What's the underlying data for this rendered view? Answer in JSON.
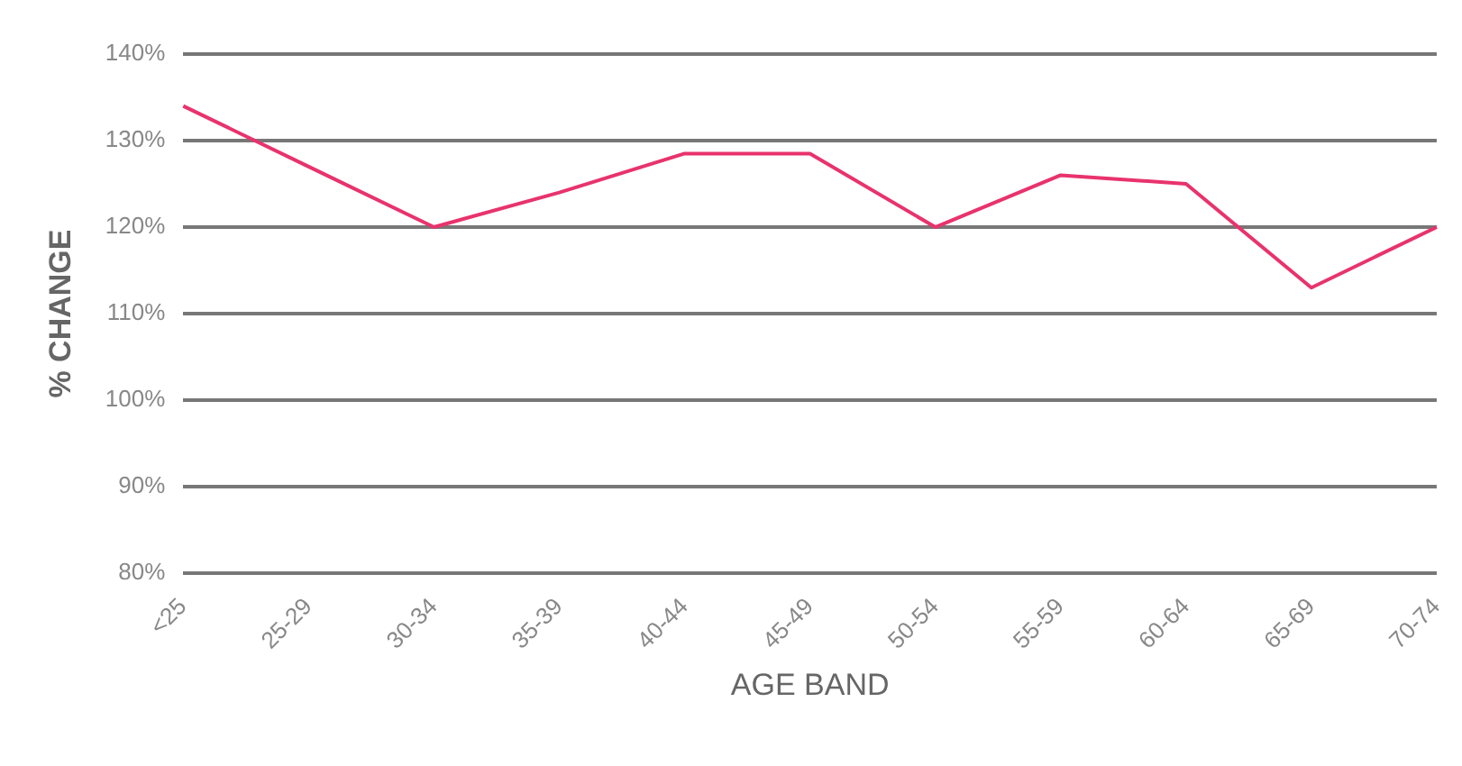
{
  "chart_data": {
    "type": "line",
    "xlabel": "AGE BAND",
    "ylabel": "% CHANGE",
    "categories": [
      "<25",
      "25-29",
      "30-34",
      "35-39",
      "40-44",
      "45-49",
      "50-54",
      "55-59",
      "60-64",
      "65-69",
      "70-74"
    ],
    "series": [
      {
        "color": "#e8336d",
        "values": [
          134,
          127,
          120,
          124,
          128.5,
          128.5,
          120,
          126,
          125,
          113,
          120
        ]
      }
    ],
    "ylim": [
      80,
      140
    ],
    "yticks": [
      {
        "value": 80,
        "label": "80%"
      },
      {
        "value": 90,
        "label": "90%"
      },
      {
        "value": 100,
        "label": "100%"
      },
      {
        "value": 110,
        "label": "110%"
      },
      {
        "value": 120,
        "label": "120%"
      },
      {
        "value": 130,
        "label": "130%"
      },
      {
        "value": 140,
        "label": "140%"
      }
    ],
    "grid": "y",
    "legend": false,
    "marker": "none",
    "line_style": "solid"
  }
}
